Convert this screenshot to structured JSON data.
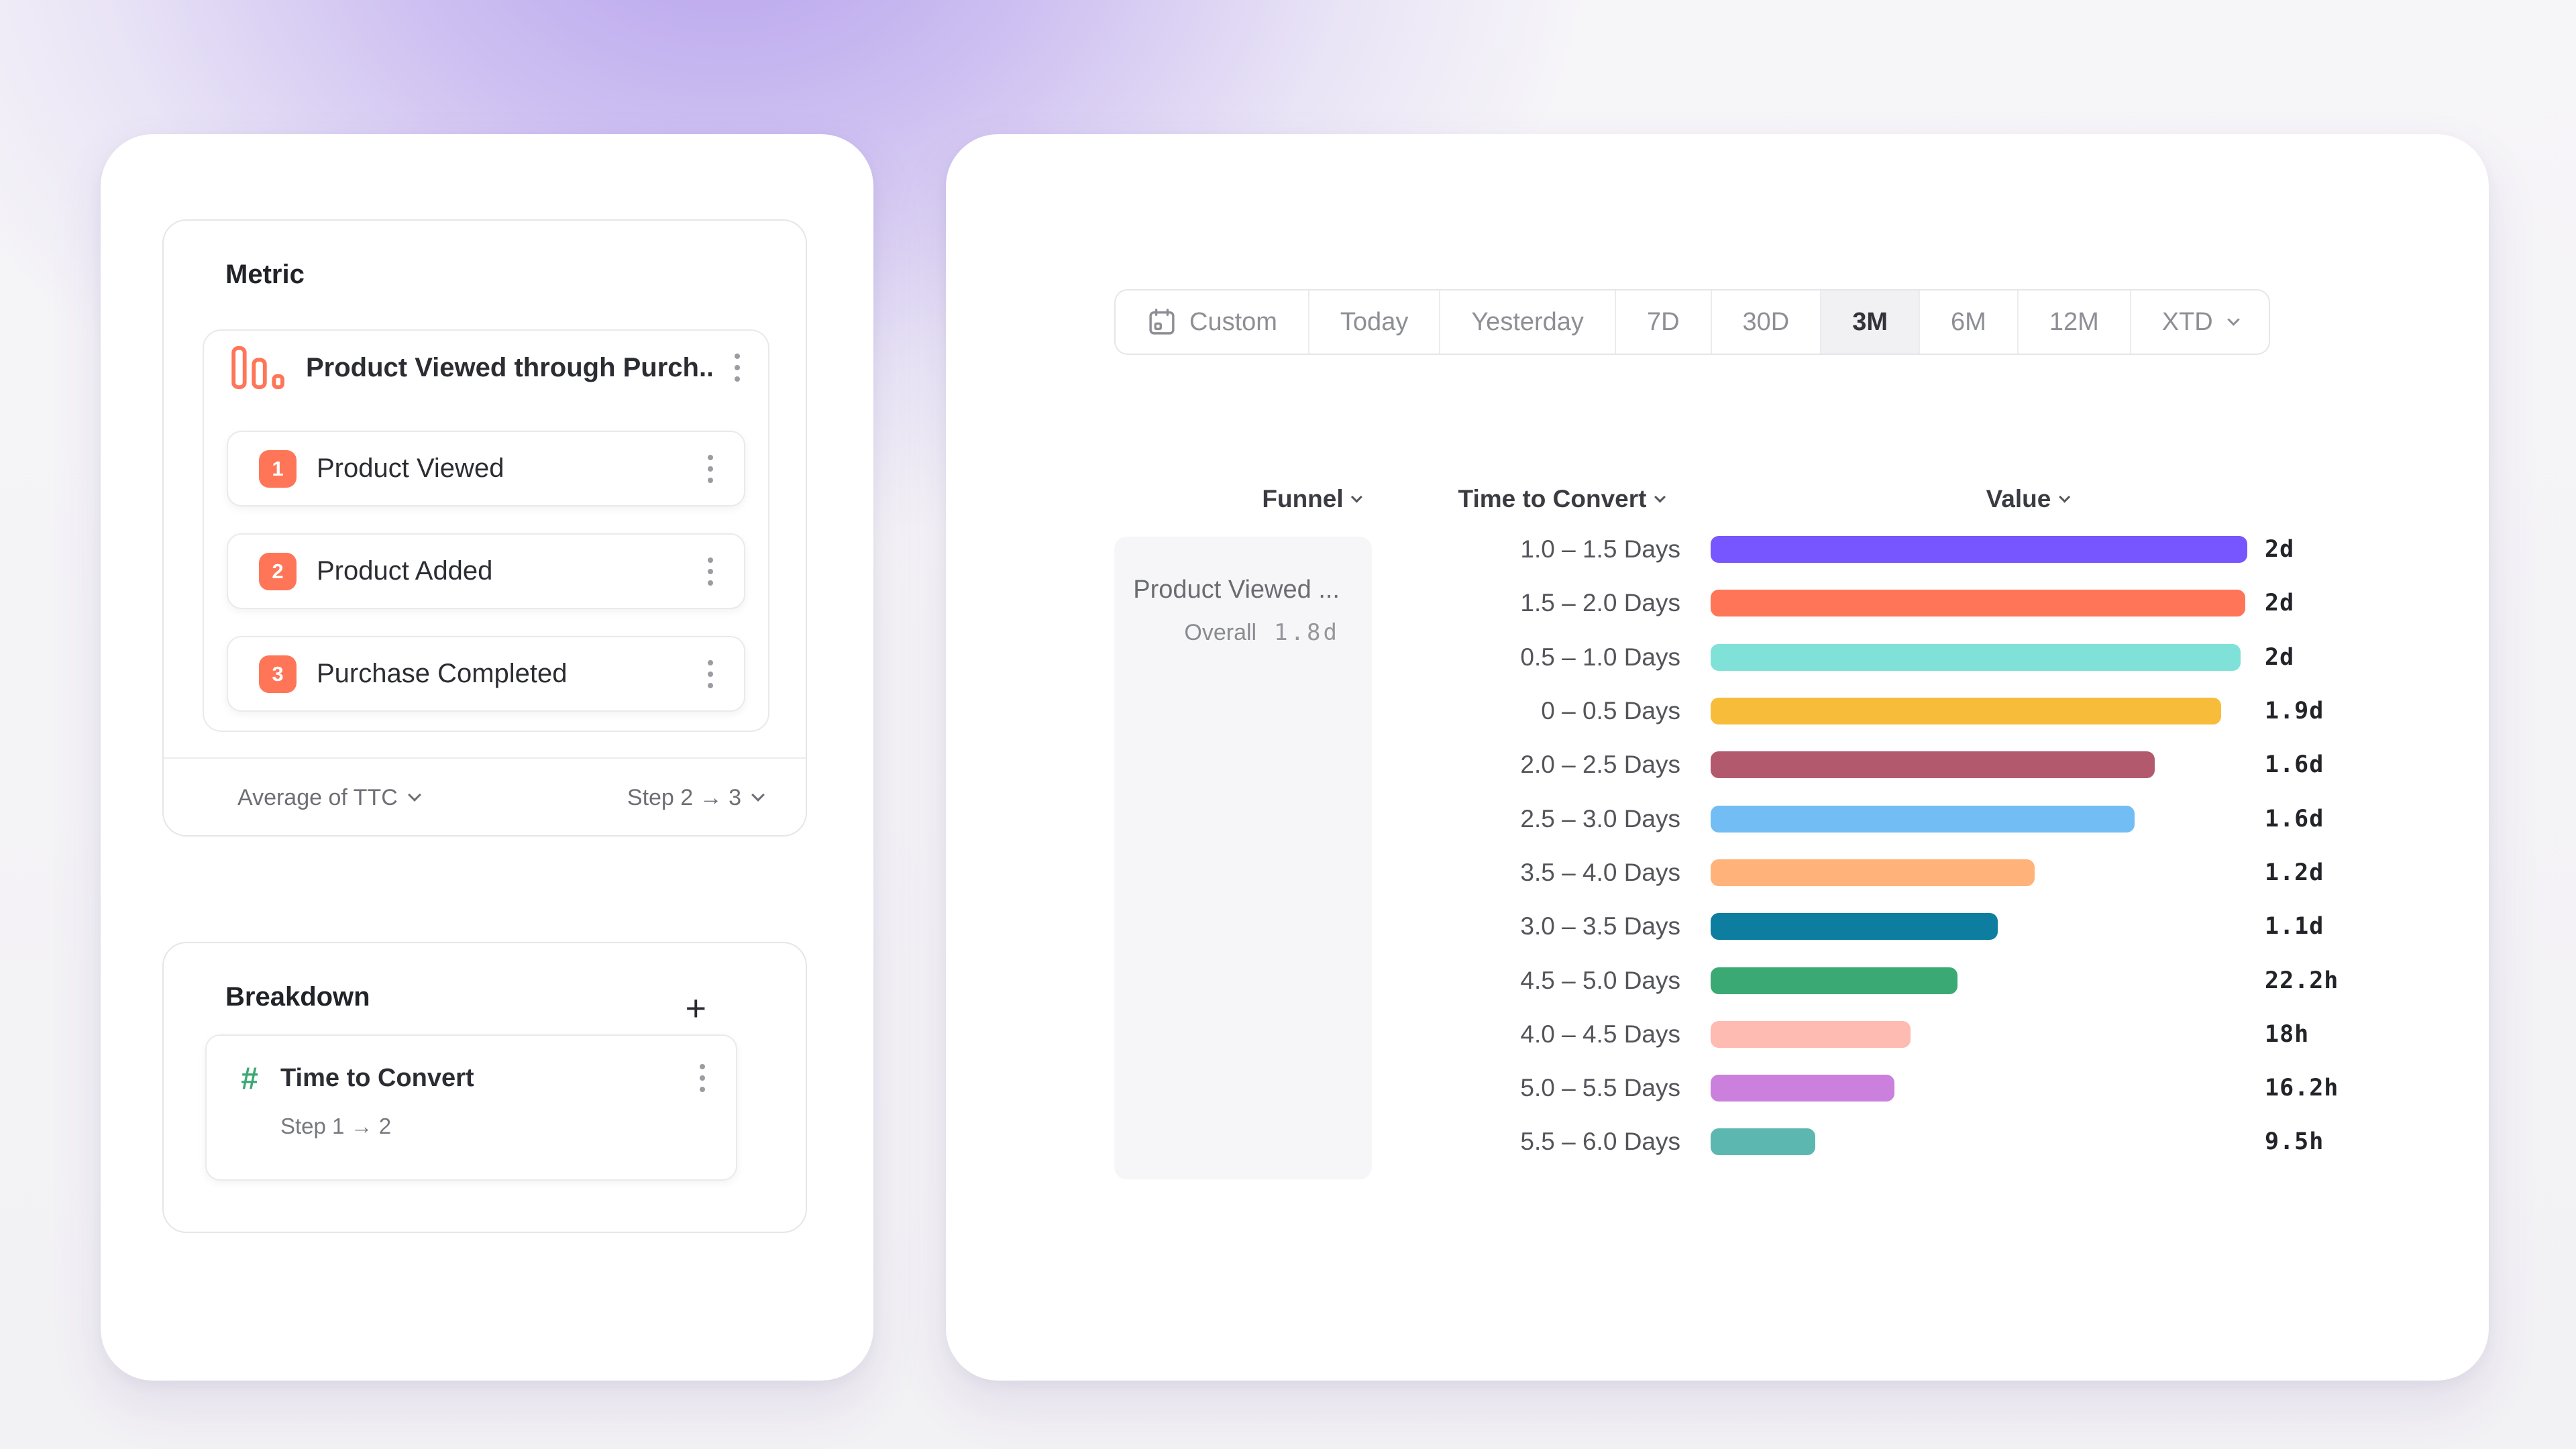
{
  "background": {
    "glow": "#8D6AE9",
    "base": "#F3F2F4",
    "panel": "#FFFFFF",
    "accent": "#FF7557",
    "hash_green": "#3BA974"
  },
  "left_panel": {
    "metric": {
      "section_title": "Metric",
      "name": "Product Viewed through Purch...",
      "icon": "bar-chart-icon",
      "steps": [
        {
          "num": "1",
          "label": "Product Viewed"
        },
        {
          "num": "2",
          "label": "Product Added"
        },
        {
          "num": "3",
          "label": "Purchase Completed"
        }
      ],
      "footer": {
        "aggregation": "Average of TTC",
        "step_range": "Step 2 → 3"
      }
    },
    "breakdown": {
      "section_title": "Breakdown",
      "add_label": "+",
      "item": {
        "icon": "hash-icon",
        "label": "Time to Convert",
        "sub": "Step 1 → 2"
      }
    }
  },
  "right_panel": {
    "date_picker": {
      "selected": "3M",
      "options": [
        {
          "label": "Custom",
          "icon": "calendar-icon"
        },
        {
          "label": "Today"
        },
        {
          "label": "Yesterday"
        },
        {
          "label": "7D"
        },
        {
          "label": "30D"
        },
        {
          "label": "3M",
          "selected": true
        },
        {
          "label": "6M"
        },
        {
          "label": "12M"
        },
        {
          "label": "XTD",
          "chevron": true
        }
      ]
    },
    "columns": {
      "funnel": "Funnel",
      "ttc": "Time to Convert",
      "value": "Value"
    },
    "funnel_cell": {
      "name": "Product Viewed ...",
      "overall_label": "Overall",
      "overall_value": "1.8d"
    }
  },
  "chart_data": {
    "type": "bar",
    "orientation": "horizontal",
    "title": "",
    "xlabel": "Value",
    "ylabel": "Time to Convert",
    "xlim_days": [
      0,
      2
    ],
    "grid": false,
    "legend": false,
    "categories": [
      "1.0 – 1.5 Days",
      "1.5 – 2.0 Days",
      "0.5 – 1.0 Days",
      "0 – 0.5 Days",
      "2.0 – 2.5 Days",
      "2.5 – 3.0 Days",
      "3.5 – 4.0 Days",
      "3.0 – 3.5 Days",
      "4.5 – 5.0 Days",
      "4.0 – 4.5 Days",
      "5.0 – 5.5 Days",
      "5.5 – 6.0 Days"
    ],
    "value_labels": [
      "2d",
      "2d",
      "2d",
      "1.9d",
      "1.6d",
      "1.6d",
      "1.2d",
      "1.1d",
      "22.2h",
      "18h",
      "16.2h",
      "9.5h"
    ],
    "values_days": [
      2,
      2,
      2,
      1.9,
      1.6,
      1.6,
      1.2,
      1.1,
      0.925,
      0.75,
      0.675,
      0.396
    ],
    "bar_pct": [
      100,
      99.6,
      98.7,
      95.1,
      82.7,
      79.0,
      60.4,
      53.5,
      46.0,
      37.3,
      34.3,
      19.5
    ],
    "colors": [
      "#7856FF",
      "#FF7557",
      "#80E1D9",
      "#F8BC3B",
      "#B2596E",
      "#72BEF4",
      "#FFB27A",
      "#0D7EA0",
      "#3BA974",
      "#FEBBB2",
      "#CA80DC",
      "#5BB7AF"
    ]
  }
}
